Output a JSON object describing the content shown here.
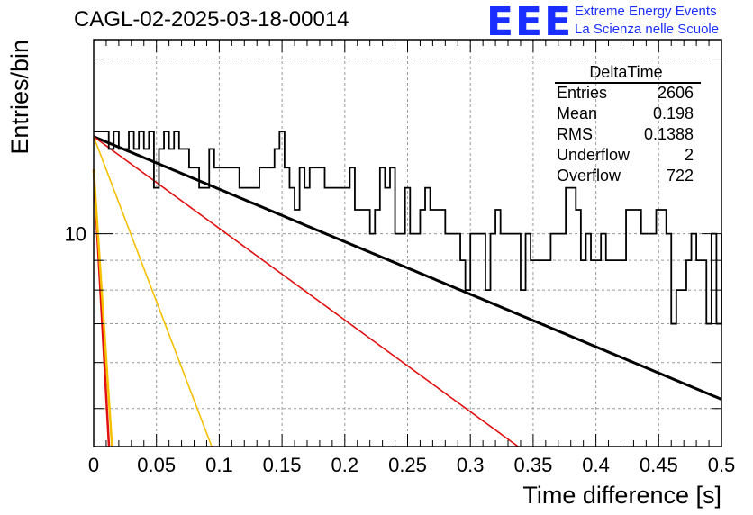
{
  "title": "CAGL-02-2025-03-18-00014",
  "logo": {
    "mark": "EEE",
    "line1": "Extreme Energy Events",
    "line2": "La Scienza nelle Scuole",
    "color": "#1a2eff"
  },
  "stats": {
    "title": "DeltaTime",
    "rows": [
      {
        "label": "Entries",
        "value": "2606"
      },
      {
        "label": "Mean",
        "value": "0.198"
      },
      {
        "label": "RMS",
        "value": "0.1388"
      },
      {
        "label": "Underflow",
        "value": "2"
      },
      {
        "label": "Overflow",
        "value": "722"
      }
    ]
  },
  "chart_data": {
    "type": "histogram",
    "title": "CAGL-02-2025-03-18-00014",
    "xlabel": "Time difference [s]",
    "ylabel": "Entries/bin",
    "xlim": [
      0,
      0.5
    ],
    "ylim": [
      4.3,
      21.6
    ],
    "yscale": "log",
    "grid": true,
    "x_ticks": [
      0,
      0.05,
      0.1,
      0.15,
      0.2,
      0.25,
      0.3,
      0.35,
      0.4,
      0.45,
      0.5
    ],
    "x_tick_labels": [
      "0",
      "0.05",
      "0.1",
      "0.15",
      "0.2",
      "0.25",
      "0.3",
      "0.35",
      "0.4",
      "0.45",
      "0.5"
    ],
    "y_ticks": [
      10
    ],
    "y_tick_labels": [
      "10"
    ],
    "bin_width": 0.004,
    "histogram": [
      15,
      15,
      15,
      14,
      15,
      14,
      14,
      15,
      14,
      15,
      14,
      15,
      12,
      14,
      15,
      14,
      15,
      14,
      14,
      13,
      13,
      12,
      12,
      14,
      13,
      13,
      13,
      13,
      13,
      12,
      12,
      12,
      12,
      13,
      13,
      13,
      14,
      15,
      13,
      12,
      11,
      13,
      12,
      13,
      13,
      13,
      12,
      12,
      12,
      12,
      12,
      13,
      11,
      11,
      11,
      10,
      11,
      13,
      12,
      13,
      10,
      10,
      12,
      10,
      10,
      11,
      12,
      11,
      11,
      11,
      10,
      10,
      10,
      9,
      8,
      10,
      10,
      10,
      8,
      10,
      11,
      10,
      10,
      10,
      10,
      8,
      10,
      9,
      9,
      9,
      9,
      10,
      10,
      10,
      12,
      12,
      11,
      9,
      10,
      9,
      9,
      10,
      9,
      9,
      9,
      9,
      11,
      11,
      11,
      10,
      10,
      10,
      11,
      11,
      10,
      7,
      8,
      8,
      9,
      10,
      9,
      9,
      7,
      10,
      7,
      10
    ],
    "series": [
      {
        "name": "",
        "type": "exp",
        "amplitude": 14.7,
        "tau": 0.48,
        "color": "#000000",
        "width": 3
      },
      {
        "name": "",
        "type": "exp",
        "amplitude": 14.7,
        "tau": 0.275,
        "color": "#e01010",
        "width": 1.6
      },
      {
        "name": "",
        "type": "exp",
        "amplitude": 14.7,
        "tau": 0.0765,
        "color": "#f5c000",
        "width": 1.6
      },
      {
        "name": "",
        "type": "exp",
        "amplitude": 12.9,
        "tau": 0.0111,
        "color": "#e01010",
        "width": 2.5
      },
      {
        "name": "",
        "type": "exp",
        "amplitude": 12.9,
        "tau": 0.0133,
        "color": "#f5c000",
        "width": 2.5
      }
    ]
  }
}
